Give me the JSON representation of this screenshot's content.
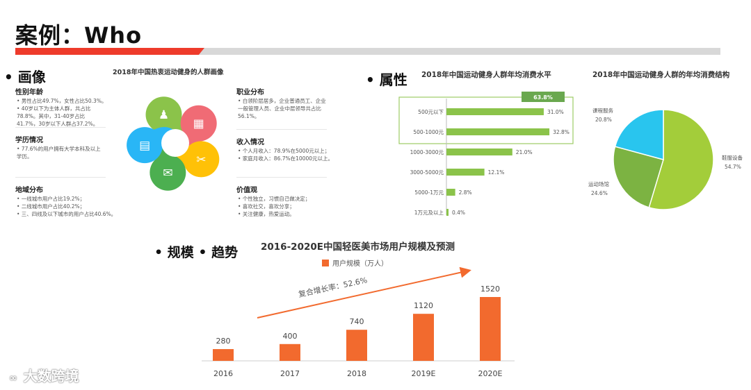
{
  "page": {
    "title": "案例：Who",
    "watermark": "大数跨境"
  },
  "portrait": {
    "section": "• 画像",
    "center_title": "2018年中国热衷运动健身的人群画像",
    "blocks_left": [
      {
        "heading": "性别年龄",
        "lines": [
          "• 男性占比49.7%，女性占比50.3%。",
          "• 40岁以下为主体人群，共占比",
          "  78.8%。其中，31-40岁占比",
          "  41.7%，30岁以下人群占37.2%。"
        ]
      },
      {
        "heading": "学历情况",
        "lines": [
          "• 77.6%的用户拥有大学本科及以上",
          "  学历。"
        ]
      },
      {
        "heading": "地域分布",
        "lines": [
          "• 一线城市用户占比19.2%；",
          "• 二线城市用户占比40.2%；",
          "• 三、四线及以下城市的用户占比40.6%。"
        ]
      }
    ],
    "blocks_right": [
      {
        "heading": "职业分布",
        "lines": [
          "• 白领阶层居多，企业普通员工、企业",
          "  一般管理人员、企业中层领导共占比",
          "  56.1%。"
        ]
      },
      {
        "heading": "收入情况",
        "lines": [
          "• 个人月收入：78.9%在5000元以上；",
          "• 家庭月收入：86.7%在10000元以上。"
        ]
      },
      {
        "heading": "价值观",
        "lines": [
          "• 个性独立，习惯自己做决定；",
          "• 喜欢社交，喜欢分享；",
          "• 关注健康，热爱运动。"
        ]
      }
    ],
    "petal_colors": [
      "#8bc34a",
      "#f06b75",
      "#ffc107",
      "#4caf50",
      "#29b6f6"
    ],
    "petal_icons": [
      "user-icon",
      "chart-icon",
      "tools-icon",
      "chat-icon",
      "document-icon"
    ]
  },
  "attributes": {
    "section": "• 属性",
    "pie_title": "2018年中国运动健身人群的年均消费结构"
  },
  "scale": {
    "section": "• 规模 • 趋势",
    "growth_label": "复合增长率：52.6%"
  },
  "chart_data": [
    {
      "type": "bar",
      "orientation": "horizontal",
      "title": "2018年中国运动健身人群年均消费水平",
      "categories": [
        "500元以下",
        "500-1000元",
        "1000-3000元",
        "3000-5000元",
        "5000-1万元",
        "1万元及以上"
      ],
      "values": [
        31.0,
        32.8,
        21.0,
        12.1,
        2.8,
        0.4
      ],
      "value_labels": [
        "31.0%",
        "32.8%",
        "21.0%",
        "12.1%",
        "2.8%",
        "0.4%"
      ],
      "highlight_total": "63.8%",
      "color": "#8bc34a",
      "xlim": [
        0,
        35
      ]
    },
    {
      "type": "pie",
      "title": "2018年中国运动健身人群的年均消费结构",
      "labels": [
        "鞋服设备",
        "运动场馆",
        "课程服务"
      ],
      "values": [
        54.7,
        24.6,
        20.8
      ],
      "value_labels": [
        "54.7%",
        "24.6%",
        "20.8%"
      ],
      "colors": [
        "#a3cd3a",
        "#7cb342",
        "#29c5ee"
      ]
    },
    {
      "type": "bar",
      "title": "2016-2020E中国轻医美市场用户规模及预测",
      "legend": "用户规模（万人）",
      "categories": [
        "2016",
        "2017",
        "2018",
        "2019E",
        "2020E"
      ],
      "values": [
        280,
        400,
        740,
        1120,
        1520
      ],
      "color": "#f26a2e",
      "ylim": [
        0,
        1520
      ]
    }
  ]
}
